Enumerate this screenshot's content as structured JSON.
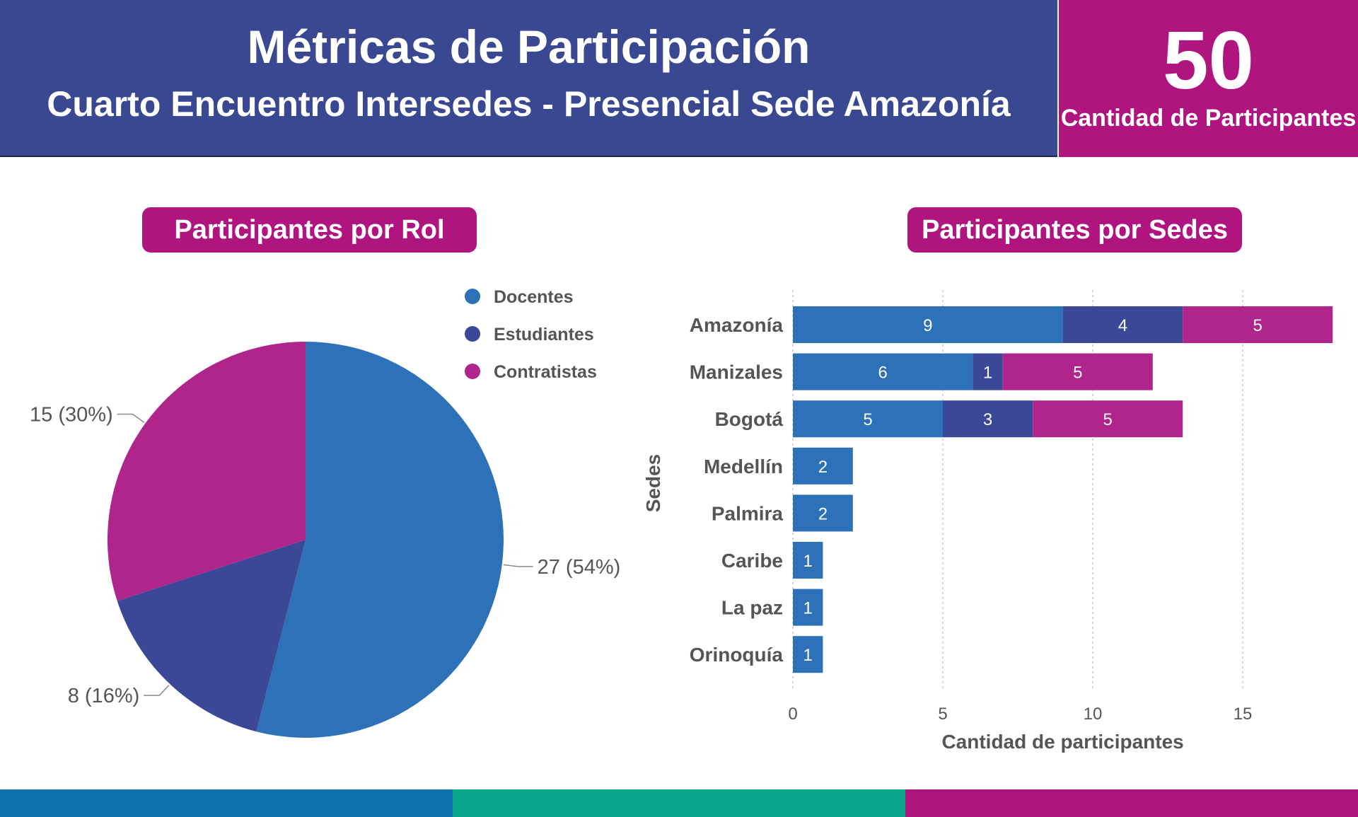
{
  "header": {
    "title": "Métricas de Participación",
    "subtitle": "Cuarto Encuentro Intersedes - Presencial Sede Amazonía"
  },
  "kpi": {
    "value": "50",
    "label": "Cantidad de Participantes"
  },
  "colors": {
    "docentes": "#2d72b8",
    "estudiantes": "#3a4897",
    "contratistas": "#b0258c",
    "header_bg": "#3a4891",
    "accent": "#b0147f",
    "footer": [
      "#0e6fae",
      "#0aa88a",
      "#b0147f"
    ]
  },
  "chart_data": [
    {
      "type": "pie",
      "title": "Participantes por Rol",
      "legend": [
        "Docentes",
        "Estudiantes",
        "Contratistas"
      ],
      "legend_position": "top-right",
      "slices": [
        {
          "name": "Docentes",
          "value": 27,
          "label": "27 (54%)"
        },
        {
          "name": "Estudiantes",
          "value": 8,
          "label": "8 (16%)"
        },
        {
          "name": "Contratistas",
          "value": 15,
          "label": "15 (30%)"
        }
      ]
    },
    {
      "type": "bar",
      "orientation": "horizontal",
      "stacked": true,
      "title": "Participantes por Sedes",
      "xlabel": "Cantidad de participantes",
      "ylabel": "Sedes",
      "categories": [
        "Amazonía",
        "Manizales",
        "Bogotá",
        "Medellín",
        "Palmira",
        "Caribe",
        "La paz",
        "Orinoquía"
      ],
      "series": [
        {
          "name": "Docentes",
          "values": [
            9,
            6,
            5,
            2,
            2,
            1,
            1,
            1
          ]
        },
        {
          "name": "Estudiantes",
          "values": [
            4,
            1,
            3,
            0,
            0,
            0,
            0,
            0
          ]
        },
        {
          "name": "Contratistas",
          "values": [
            5,
            5,
            5,
            0,
            0,
            0,
            0,
            0
          ]
        }
      ],
      "xlim": [
        0,
        18
      ],
      "xticks": [
        0,
        5,
        10,
        15
      ],
      "grid": true
    }
  ]
}
